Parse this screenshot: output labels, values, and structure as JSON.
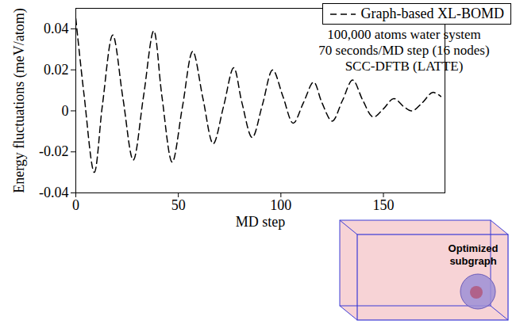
{
  "chart_data": {
    "type": "line",
    "x_label": "MD step",
    "y_label": "Energy fluctuations (meV/atom)",
    "annotations": [
      "100,000 atoms water system",
      "70 seconds/MD step (16 nodes)",
      "SCC-DFTB (LATTE)"
    ],
    "inset_label": "Optimized subgraph",
    "x": [
      0,
      4,
      9,
      13,
      18,
      23,
      28,
      33,
      38,
      42,
      47,
      52,
      57,
      62,
      67,
      72,
      77,
      81,
      86,
      91,
      96,
      101,
      106,
      111,
      116,
      120,
      125,
      130,
      135,
      140,
      145,
      150,
      155,
      160,
      164,
      169,
      174,
      178
    ],
    "series": [
      {
        "name": "Graph-based XL-BOMD",
        "color": "#000000",
        "line_style": "dashed",
        "values": [
          0.045,
          0.008,
          -0.03,
          0.003,
          0.037,
          0.006,
          -0.024,
          0.007,
          0.039,
          0.007,
          -0.025,
          0.002,
          0.029,
          0.006,
          -0.016,
          0.002,
          0.021,
          0.004,
          -0.013,
          0.003,
          0.02,
          0.007,
          -0.006,
          0.004,
          0.014,
          0.004,
          -0.005,
          0.005,
          0.015,
          0.005,
          -0.003,
          0.001,
          0.006,
          0.002,
          0.0,
          0.004,
          0.009,
          0.007
        ]
      }
    ],
    "xlim": [
      0,
      180
    ],
    "xticks": [
      0,
      50,
      100,
      150
    ],
    "ylim": [
      -0.04,
      0.05
    ],
    "yticks": [
      -0.04,
      -0.02,
      0,
      0.02,
      0.04
    ],
    "grid": false,
    "legend": "top-right"
  }
}
